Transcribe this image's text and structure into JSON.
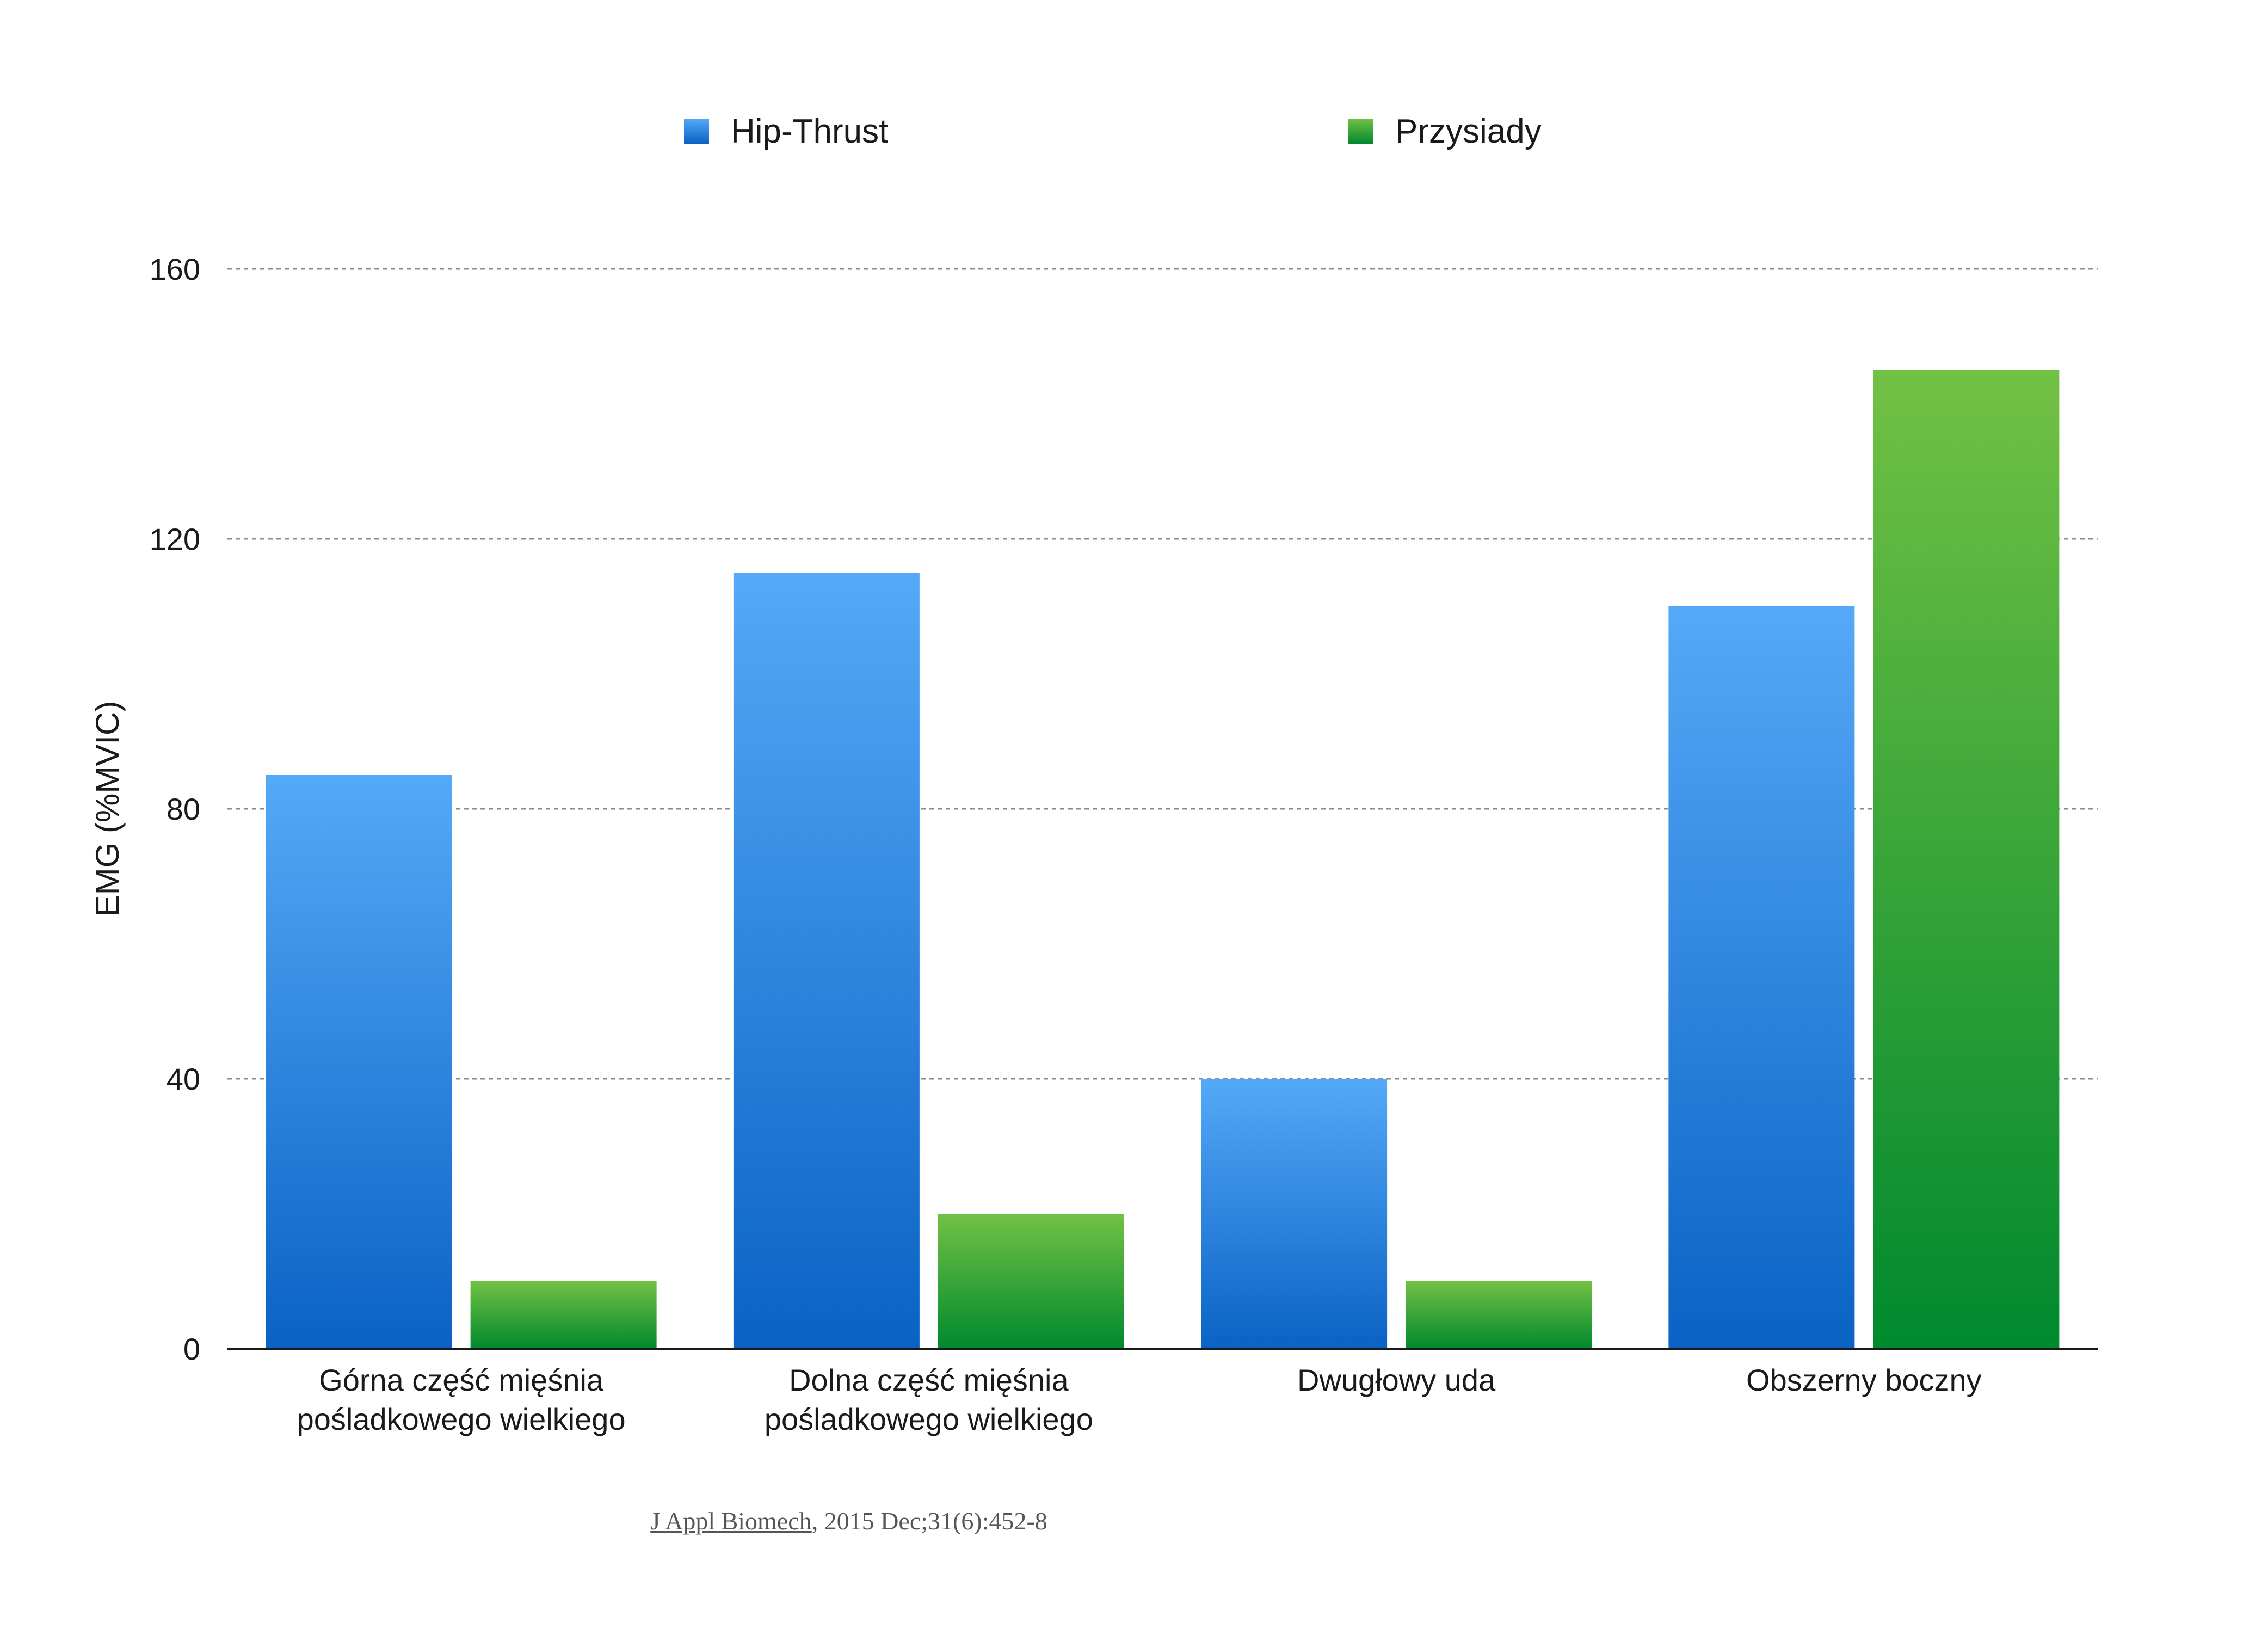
{
  "chart_data": {
    "type": "bar",
    "ylabel": "EMG (%MVIC)",
    "ylim": [
      0,
      160
    ],
    "yticks": [
      0,
      40,
      80,
      120,
      160
    ],
    "grid": true,
    "legend_position": "top",
    "categories": [
      [
        "Górna część mięśnia",
        "pośladkowego wielkiego"
      ],
      [
        "Dolna część mięśnia",
        "pośladkowego wielkiego"
      ],
      [
        "Dwugłowy uda"
      ],
      [
        "Obszerny boczny"
      ]
    ],
    "series": [
      {
        "name": "Hip-Thrust",
        "values": [
          85,
          115,
          40,
          110
        ],
        "color_top": "#55a9f8",
        "color_bottom": "#0a62c4"
      },
      {
        "name": "Przysiady",
        "values": [
          10,
          20,
          10,
          145
        ],
        "color_top": "#72c144",
        "color_bottom": "#00892e"
      }
    ]
  },
  "citation": {
    "journal": "J Appl Biomech",
    "details": ", 2015 Dec;31(6):452-8"
  }
}
